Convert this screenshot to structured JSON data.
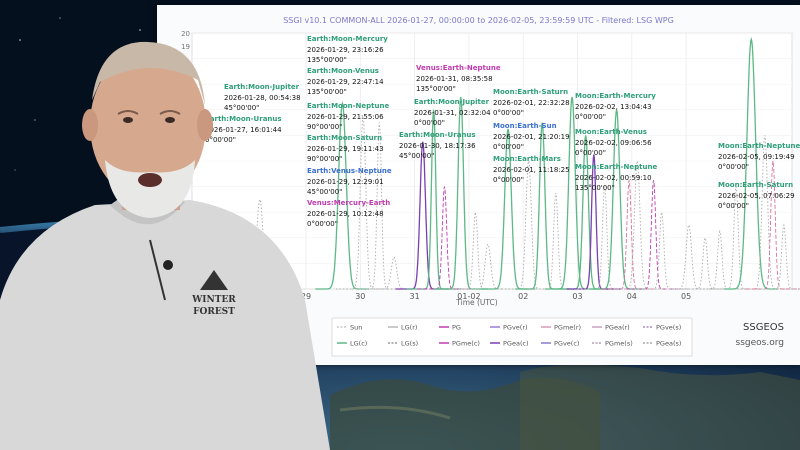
{
  "colors": {
    "green": "#5cb885",
    "teal": "#2e9e78",
    "purple": "#7a3fb0",
    "magenta": "#c13bb0",
    "blue": "#3a6fd0",
    "pink": "#d9739a",
    "grey": "#b9b9b9",
    "title": "#7b78c9"
  },
  "brand": {
    "name": "SSGEOS",
    "site": "ssgeos.org"
  },
  "chart_data": {
    "type": "line",
    "title": "SSGI v10.1 COMMON-ALL 2026-01-27, 00:00:00 to 2026-02-05, 23:59:59 UTC - Filtered: LSG WPG",
    "xlabel": "Time (UTC)",
    "ylabel": "",
    "x_ticks": [
      "29",
      "30",
      "31",
      "01-02",
      "02",
      "03",
      "04",
      "05"
    ],
    "y_ticks_visible": [
      "20",
      "19"
    ],
    "ylim": [
      0,
      20
    ],
    "grid": true,
    "legend_position": "bottom",
    "legend": [
      "Sun",
      "LG(r)",
      "PG",
      "PGve(r)",
      "PGme(r)",
      "PGea(r)",
      "PGve(s)",
      "LG(c)",
      "LG(s)",
      "PGme(c)",
      "PGea(c)",
      "PGve(c)",
      "PGme(s)",
      "PGea(s)"
    ],
    "legend_colors": [
      "#c9c9c9",
      "#b8b8b8",
      "#c13bb0",
      "#9a7ad6",
      "#d99ab8",
      "#c9a0c0",
      "#a98cc9",
      "#5cb885",
      "#9a9a9a",
      "#c13bb0",
      "#7a3fb0",
      "#8a78c8",
      "#b0a0b0",
      "#a8a8a8"
    ],
    "annotations": [
      {
        "label": "Earth:Moon-Jupiter",
        "time": "2026-01-28, 00:54:38",
        "angle": "45°00'00\"",
        "color": "#2e9e78"
      },
      {
        "label": "Earth:Moon-Uranus",
        "time": "2026-01-27, 16:01:44",
        "angle": "0°00'00\"",
        "color": "#2e9e78"
      },
      {
        "label": "Earth:Moon-Mercury",
        "time": "2026-01-29, 23:16:26",
        "angle": "135°00'00\"",
        "color": "#2e9e78"
      },
      {
        "label": "Earth:Moon-Venus",
        "time": "2026-01-29, 22:47:14",
        "angle": "135°00'00\"",
        "color": "#2e9e78"
      },
      {
        "label": "Earth:Moon-Neptune",
        "time": "2026-01-29, 21:55:06",
        "angle": "90°00'00\"",
        "color": "#2e9e78"
      },
      {
        "label": "Earth:Moon-Saturn",
        "time": "2026-01-29, 19:11:43",
        "angle": "90°00'00\"",
        "color": "#2e9e78"
      },
      {
        "label": "Earth:Venus-Neptune",
        "time": "2026-01-29, 12:29:01",
        "angle": "45°00'00\"",
        "color": "#3a6fd0"
      },
      {
        "label": "Venus:Mercury-Earth",
        "time": "2026-01-29, 10:12:48",
        "angle": "0°00'00\"",
        "color": "#c13bb0"
      },
      {
        "label": "Venus:Earth-Neptune",
        "time": "2026-01-31, 08:35:58",
        "angle": "135°00'00\"",
        "color": "#c13bb0"
      },
      {
        "label": "Earth:Moon-Jupiter",
        "time": "2026-01-31, 02:32:04",
        "angle": "0°00'00\"",
        "color": "#2e9e78"
      },
      {
        "label": "Earth:Moon-Uranus",
        "time": "2026-01-30, 18:17:36",
        "angle": "45°00'00\"",
        "color": "#2e9e78"
      },
      {
        "label": "Moon:Earth-Saturn",
        "time": "2026-02-01, 22:32:28",
        "angle": "0°00'00\"",
        "color": "#2e9e78"
      },
      {
        "label": "Moon:Earth-Sun",
        "time": "2026-02-01, 21:20:19",
        "angle": "0°00'00\"",
        "color": "#3a6fd0"
      },
      {
        "label": "Moon:Earth-Mars",
        "time": "2026-02-01, 11:18:25",
        "angle": "0°00'00\"",
        "color": "#2e9e78"
      },
      {
        "label": "Moon:Earth-Mercury",
        "time": "2026-02-02, 13:04:43",
        "angle": "0°00'00\"",
        "color": "#2e9e78"
      },
      {
        "label": "Moon:Earth-Venus",
        "time": "2026-02-02, 09:06:56",
        "angle": "0°00'00\"",
        "color": "#2e9e78"
      },
      {
        "label": "Moon:Earth-Neptune",
        "time": "2026-02-02, 00:59:10",
        "angle": "135°00'00\"",
        "color": "#2e9e78"
      },
      {
        "label": "Moon:Earth-Neptune",
        "time": "2026-02-05, 09:19:49",
        "angle": "0°00'00\"",
        "color": "#2e9e78"
      },
      {
        "label": "Moon:Earth-Saturn",
        "time": "2026-02-05, 07:06:29",
        "angle": "0°00'00\"",
        "color": "#2e9e78"
      }
    ],
    "peaks": [
      {
        "day": -0.85,
        "height": 7.0,
        "width": 0.06,
        "color": "#aaaaaa",
        "style": "dotted"
      },
      {
        "day": 0.67,
        "height": 14.5,
        "width": 0.07,
        "color": "#5cb885",
        "style": "solid"
      },
      {
        "day": 1.05,
        "height": 13.5,
        "width": 0.05,
        "color": "#aaaaaa",
        "style": "dotted"
      },
      {
        "day": 1.35,
        "height": 13.0,
        "width": 0.04,
        "color": "#aaaaaa",
        "style": "dotted"
      },
      {
        "day": 1.62,
        "height": 2.5,
        "width": 0.05,
        "color": "#aaaaaa",
        "style": "dotted"
      },
      {
        "day": 2.15,
        "height": 11.5,
        "width": 0.05,
        "color": "#7a3fb0",
        "style": "solid"
      },
      {
        "day": 2.35,
        "height": 14.0,
        "width": 0.04,
        "color": "#5cb885",
        "style": "solid"
      },
      {
        "day": 2.55,
        "height": 8.0,
        "width": 0.04,
        "color": "#c13bb0",
        "style": "dashed"
      },
      {
        "day": 2.85,
        "height": 15.0,
        "width": 0.05,
        "color": "#5cb885",
        "style": "solid"
      },
      {
        "day": 3.12,
        "height": 6.0,
        "width": 0.04,
        "color": "#aaaaaa",
        "style": "dotted"
      },
      {
        "day": 3.35,
        "height": 3.5,
        "width": 0.05,
        "color": "#aaaaaa",
        "style": "dotted"
      },
      {
        "day": 3.72,
        "height": 12.5,
        "width": 0.06,
        "color": "#5cb885",
        "style": "solid"
      },
      {
        "day": 4.1,
        "height": 10.0,
        "width": 0.05,
        "color": "#aaaaaa",
        "style": "dotted"
      },
      {
        "day": 4.35,
        "height": 13.0,
        "width": 0.05,
        "color": "#5cb885",
        "style": "solid"
      },
      {
        "day": 4.6,
        "height": 7.5,
        "width": 0.04,
        "color": "#aaaaaa",
        "style": "dotted"
      },
      {
        "day": 4.9,
        "height": 15.0,
        "width": 0.06,
        "color": "#5cb885",
        "style": "solid"
      },
      {
        "day": 5.15,
        "height": 12.0,
        "width": 0.05,
        "color": "#5cb885",
        "style": "solid"
      },
      {
        "day": 5.3,
        "height": 10.5,
        "width": 0.04,
        "color": "#7a3fb0",
        "style": "solid"
      },
      {
        "day": 5.5,
        "height": 8.0,
        "width": 0.04,
        "color": "#aaaaaa",
        "style": "dotted"
      },
      {
        "day": 5.72,
        "height": 14.0,
        "width": 0.06,
        "color": "#5cb885",
        "style": "solid"
      },
      {
        "day": 5.95,
        "height": 8.5,
        "width": 0.04,
        "color": "#d9739a",
        "style": "dashed"
      },
      {
        "day": 6.1,
        "height": 10.0,
        "width": 0.05,
        "color": "#aaaaaa",
        "style": "dotted"
      },
      {
        "day": 6.4,
        "height": 8.5,
        "width": 0.04,
        "color": "#c13bb0",
        "style": "dashed"
      },
      {
        "day": 6.55,
        "height": 6.0,
        "width": 0.04,
        "color": "#aaaaaa",
        "style": "dotted"
      },
      {
        "day": 7.05,
        "height": 5.0,
        "width": 0.05,
        "color": "#aaaaaa",
        "style": "dotted"
      },
      {
        "day": 7.35,
        "height": 4.0,
        "width": 0.04,
        "color": "#aaaaaa",
        "style": "dotted"
      },
      {
        "day": 7.62,
        "height": 4.5,
        "width": 0.04,
        "color": "#aaaaaa",
        "style": "dotted"
      },
      {
        "day": 7.92,
        "height": 8.0,
        "width": 0.04,
        "color": "#aaaaaa",
        "style": "dotted"
      },
      {
        "day": 8.2,
        "height": 19.5,
        "width": 0.08,
        "color": "#5cb885",
        "style": "solid"
      },
      {
        "day": 8.45,
        "height": 12.0,
        "width": 0.05,
        "color": "#aaaaaa",
        "style": "dotted"
      },
      {
        "day": 8.6,
        "height": 10.0,
        "width": 0.04,
        "color": "#d9739a",
        "style": "dashed"
      },
      {
        "day": 8.8,
        "height": 5.0,
        "width": 0.04,
        "color": "#aaaaaa",
        "style": "dotted"
      }
    ]
  }
}
